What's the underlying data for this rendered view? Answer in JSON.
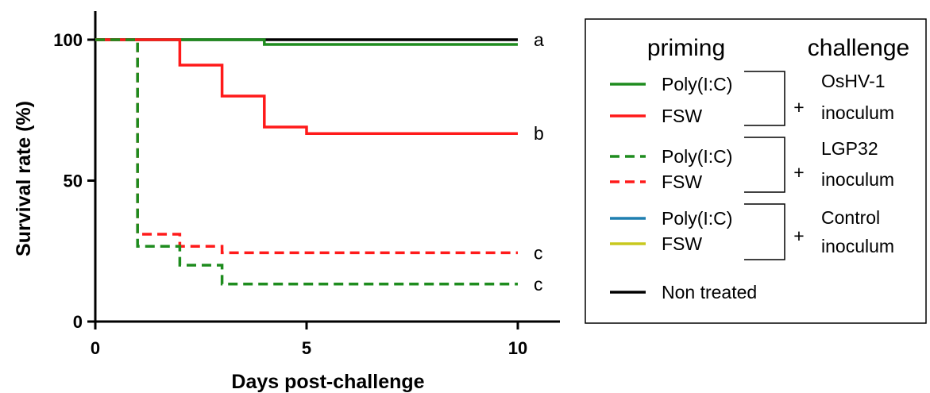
{
  "chart_data": {
    "type": "line",
    "xlabel": "Days post-challenge",
    "ylabel": "Survival rate (%)",
    "xlim": [
      0,
      10
    ],
    "ylim": [
      0,
      100
    ],
    "xticks": [
      "0",
      "5",
      "10"
    ],
    "yticks": [
      "0",
      "50",
      "100"
    ],
    "grid": false,
    "legend_position": "right",
    "series": [
      {
        "key": "nontreated",
        "color": "#000000",
        "dash": false,
        "x": [
          0,
          10
        ],
        "y": [
          100,
          100
        ],
        "end_label": "a"
      },
      {
        "key": "osh_poly",
        "color": "#1e8c1e",
        "dash": false,
        "x": [
          0,
          4,
          10
        ],
        "y": [
          100,
          98.3,
          98.3
        ],
        "end_label": ""
      },
      {
        "key": "osh_fsw",
        "color": "#ff1a1a",
        "dash": false,
        "x": [
          0,
          2,
          3,
          4,
          5,
          10
        ],
        "y": [
          100,
          91,
          80,
          69,
          66.7,
          66.7
        ],
        "end_label": "b"
      },
      {
        "key": "lgp_fsw",
        "color": "#ff1a1a",
        "dash": true,
        "x": [
          0,
          1,
          2,
          3,
          10
        ],
        "y": [
          100,
          31,
          26.7,
          24.4,
          24.4
        ],
        "end_label": "c"
      },
      {
        "key": "lgp_poly",
        "color": "#1e8c1e",
        "dash": true,
        "x": [
          0,
          1,
          2,
          3,
          10
        ],
        "y": [
          100,
          26.7,
          20,
          13.3,
          13.3
        ],
        "end_label": "c"
      }
    ]
  },
  "legend": {
    "priming_header": "priming",
    "challenge_header": "challenge",
    "groups": [
      {
        "items": [
          {
            "label": "Poly(I:C)",
            "color": "#1e8c1e",
            "dash": false
          },
          {
            "label": "FSW",
            "color": "#ff1a1a",
            "dash": false
          }
        ],
        "plus": "+",
        "challenge_line1": "OsHV-1",
        "challenge_line2": "inoculum"
      },
      {
        "items": [
          {
            "label": "Poly(I:C)",
            "color": "#1e8c1e",
            "dash": true
          },
          {
            "label": "FSW",
            "color": "#ff1a1a",
            "dash": true
          }
        ],
        "plus": "+",
        "challenge_line1": "LGP32",
        "challenge_line2": "inoculum"
      },
      {
        "items": [
          {
            "label": "Poly(I:C)",
            "color": "#1f7fb0",
            "dash": false
          },
          {
            "label": "FSW",
            "color": "#c8c81e",
            "dash": false
          }
        ],
        "plus": "+",
        "challenge_line1": "Control",
        "challenge_line2": "inoculum"
      }
    ],
    "nontreated": {
      "label": "Non treated",
      "color": "#000000"
    }
  }
}
